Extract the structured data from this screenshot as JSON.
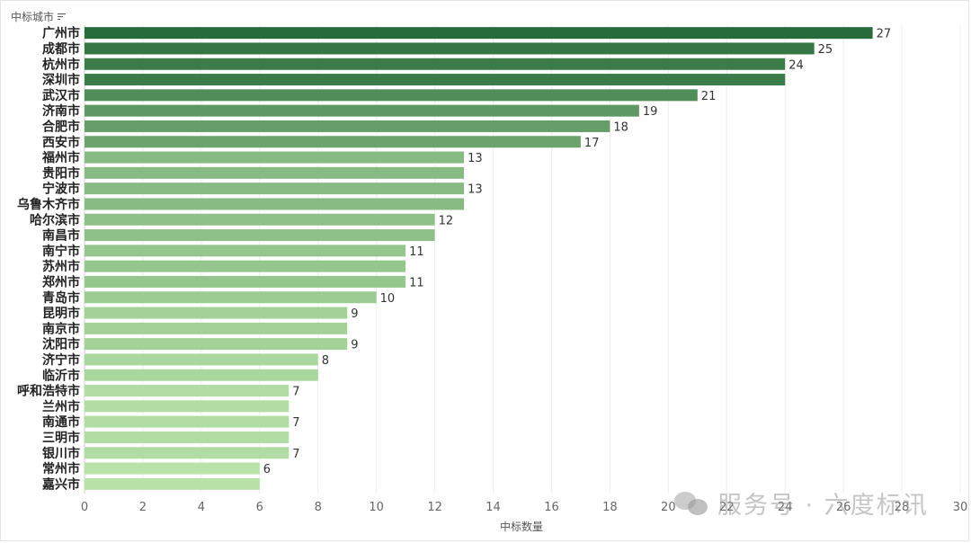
{
  "chart_data": {
    "type": "bar",
    "orientation": "horizontal",
    "ylabel": "中标城市",
    "xlabel": "中标数量",
    "xlim": [
      0,
      30
    ],
    "xticks": [
      0,
      2,
      4,
      6,
      8,
      10,
      12,
      14,
      16,
      18,
      20,
      22,
      24,
      26,
      28,
      30
    ],
    "categories": [
      "广州市",
      "成都市",
      "杭州市",
      "深圳市",
      "武汉市",
      "济南市",
      "合肥市",
      "西安市",
      "福州市",
      "贵阳市",
      "宁波市",
      "乌鲁木齐市",
      "哈尔滨市",
      "南昌市",
      "南宁市",
      "苏州市",
      "郑州市",
      "青岛市",
      "昆明市",
      "南京市",
      "沈阳市",
      "济宁市",
      "临沂市",
      "呼和浩特市",
      "兰州市",
      "南通市",
      "三明市",
      "银川市",
      "常州市",
      "嘉兴市"
    ],
    "values": [
      27,
      25,
      24,
      24,
      21,
      19,
      18,
      17,
      13,
      13,
      13,
      13,
      12,
      12,
      11,
      11,
      11,
      10,
      9,
      9,
      9,
      8,
      8,
      7,
      7,
      7,
      7,
      7,
      6,
      6
    ],
    "value_labels": [
      "27",
      "25",
      "24",
      "",
      "21",
      "19",
      "18",
      "17",
      "13",
      "",
      "13",
      "",
      "12",
      "",
      "11",
      "",
      "11",
      "10",
      "9",
      "",
      "9",
      "8",
      "",
      "7",
      "",
      "7",
      "",
      "7",
      "6",
      ""
    ],
    "grid": true,
    "colors": {
      "max": "#276b3a",
      "min": "#b8e2a8"
    }
  },
  "watermark": {
    "text": "服务号 · 六度标讯",
    "icon": "wechat-icon"
  }
}
